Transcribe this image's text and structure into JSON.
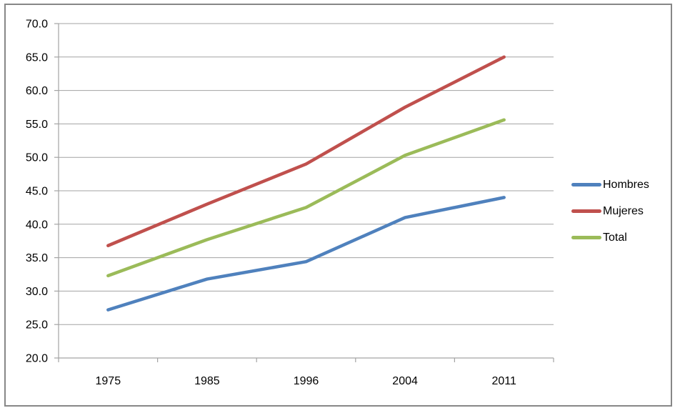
{
  "chart_data": {
    "type": "line",
    "title": "",
    "xlabel": "",
    "ylabel": "",
    "categories": [
      "1975",
      "1985",
      "1996",
      "2004",
      "2011"
    ],
    "series": [
      {
        "name": "Hombres",
        "color": "#4F81BD",
        "values": [
          27.2,
          31.8,
          34.4,
          41.0,
          44.0
        ]
      },
      {
        "name": "Mujeres",
        "color": "#C0504D",
        "values": [
          36.8,
          43.0,
          49.0,
          57.5,
          65.0
        ]
      },
      {
        "name": "Total",
        "color": "#9BBB59",
        "values": [
          32.3,
          37.7,
          42.5,
          50.3,
          55.6
        ]
      }
    ],
    "ylim": [
      20,
      70
    ],
    "y_tick_step": 5,
    "y_tick_labels": [
      "70.0",
      "65.0",
      "60.0",
      "55.0",
      "50.0",
      "45.0",
      "40.0",
      "35.0",
      "30.0",
      "25.0",
      "20.0"
    ],
    "grid": true,
    "legend_position": "right",
    "colors": {
      "gridline": "#A3A3A3",
      "axis": "#A3A3A3",
      "tick_label": "#000000",
      "frame_border": "#878787",
      "background": "#FFFFFF"
    }
  }
}
